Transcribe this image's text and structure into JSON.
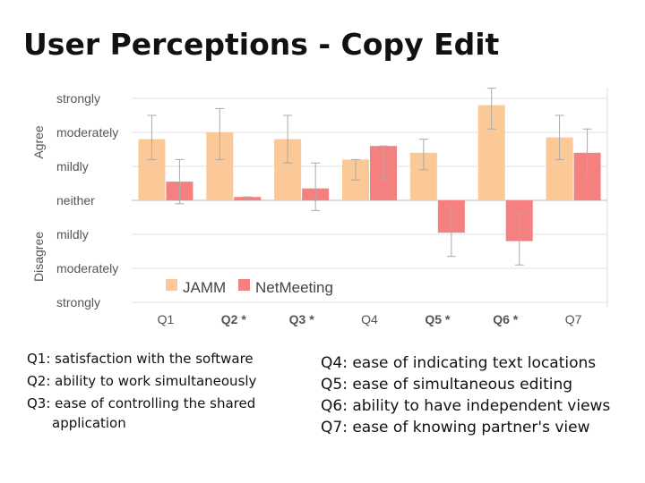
{
  "slide": {
    "title": "User Perceptions - Copy Edit"
  },
  "colors": {
    "jamm": "#fbc898",
    "netmeeting": "#f58080",
    "grid": "#cccccc",
    "error": "#aaaaaa"
  },
  "chart_data": {
    "type": "bar",
    "categories": [
      "Q1",
      "Q2 *",
      "Q3 *",
      "Q4",
      "Q5 *",
      "Q6 *",
      "Q7"
    ],
    "series": [
      {
        "name": "JAMM",
        "values": [
          1.8,
          2.0,
          1.8,
          1.2,
          1.4,
          2.8,
          1.85
        ],
        "errors": [
          [
            1.2,
            2.5
          ],
          [
            1.2,
            2.7
          ],
          [
            1.1,
            2.5
          ],
          [
            0.6,
            1.2
          ],
          [
            0.9,
            1.8
          ],
          [
            2.1,
            3.3
          ],
          [
            1.2,
            2.5
          ]
        ]
      },
      {
        "name": "NetMeeting",
        "values": [
          0.55,
          0.1,
          0.35,
          1.6,
          -0.95,
          -1.2,
          1.4
        ],
        "errors": [
          [
            -0.1,
            1.2
          ],
          [
            0.1,
            0.1
          ],
          [
            -0.3,
            1.1
          ],
          [
            0.6,
            1.6
          ],
          [
            -1.65,
            -0.2
          ],
          [
            -1.9,
            -0.4
          ],
          [
            0.7,
            2.1
          ]
        ]
      }
    ],
    "ylim": [
      -3,
      3
    ],
    "yticks": [
      {
        "value": 3,
        "label": "strongly"
      },
      {
        "value": 2,
        "label": "moderately"
      },
      {
        "value": 1,
        "label": "mildly"
      },
      {
        "value": 0,
        "label": "neither"
      },
      {
        "value": -1,
        "label": "mildly"
      },
      {
        "value": -2,
        "label": "moderately"
      },
      {
        "value": -3,
        "label": "strongly"
      }
    ],
    "axis_group_labels": {
      "upper": "Agree",
      "lower": "Disagree"
    },
    "legend": {
      "placement": "bottom-left-inside",
      "items": [
        "JAMM",
        "NetMeeting"
      ]
    },
    "grid": true
  },
  "notes": {
    "left": [
      "Q1: satisfaction with the software",
      "Q2: ability to work simultaneously",
      "Q3: ease of controlling the shared application"
    ],
    "right": [
      "Q4:  ease of indicating text locations",
      "Q5:  ease of simultaneous editing",
      "Q6:  ability to have independent views",
      "Q7:  ease of knowing partner's view"
    ]
  }
}
